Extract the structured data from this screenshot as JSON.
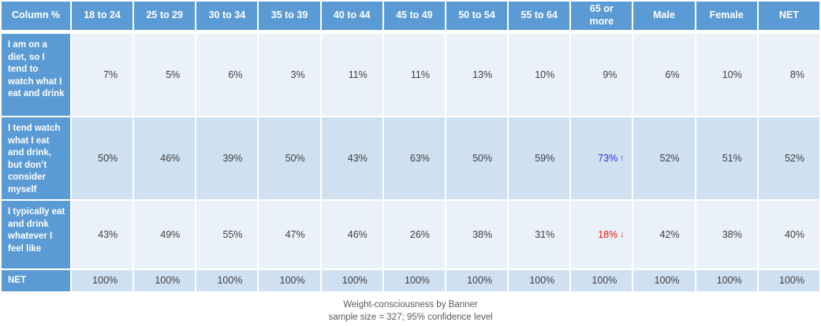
{
  "table": {
    "corner_label": "Column %",
    "columns": [
      "18 to 24",
      "25 to 29",
      "30 to 34",
      "35 to 39",
      "40 to 44",
      "45 to 49",
      "50 to 54",
      "55 to 64",
      "65 or\nmore",
      "Male",
      "Female",
      "NET"
    ],
    "rows": [
      {
        "label": "I am on a diet, so I tend to watch what I eat and drink",
        "values": [
          "7%",
          "5%",
          "6%",
          "3%",
          "11%",
          "11%",
          "13%",
          "10%",
          "9%",
          "6%",
          "10%",
          "8%"
        ]
      },
      {
        "label": "I tend watch what I eat and drink, but don’t consider myself",
        "values": [
          "50%",
          "46%",
          "39%",
          "50%",
          "43%",
          "63%",
          "50%",
          "59%",
          "73%",
          "52%",
          "51%",
          "52%"
        ],
        "markers": {
          "8": "up"
        }
      },
      {
        "label": "I typically eat and drink whatever I feel like",
        "values": [
          "43%",
          "49%",
          "55%",
          "47%",
          "46%",
          "26%",
          "38%",
          "31%",
          "18%",
          "42%",
          "38%",
          "40%"
        ],
        "markers": {
          "8": "down"
        }
      },
      {
        "label": "NET",
        "net": true,
        "values": [
          "100%",
          "100%",
          "100%",
          "100%",
          "100%",
          "100%",
          "100%",
          "100%",
          "100%",
          "100%",
          "100%",
          "100%"
        ]
      }
    ]
  },
  "icons": {
    "up": "↑",
    "down": "↓"
  },
  "colors": {
    "header_blue": "#5b9bd5",
    "band_light": "#eaf1f9",
    "band_dark": "#cfe0f1",
    "value_text": "#404040",
    "footer_text": "#595959",
    "stat_up": "#2e2ed6",
    "stat_down": "#f2150d"
  },
  "footer": {
    "title": "Weight-consciousness by Banner",
    "subtitle": "sample size = 327; 95% confidence level"
  }
}
